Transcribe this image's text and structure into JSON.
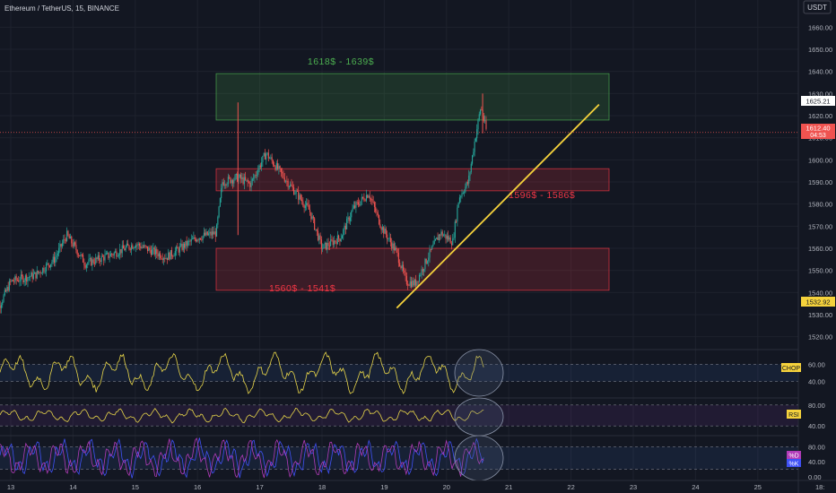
{
  "header": {
    "symbol": "Ethereum / TetherUS, 15, BINANCE",
    "currency": "USDT"
  },
  "zones": [
    {
      "label": "1618$ - 1639$",
      "low": 1618,
      "high": 1639,
      "color": "#4caf50"
    },
    {
      "label": "1596$ - 1586$",
      "low": 1586,
      "high": 1596,
      "color": "#f23645"
    },
    {
      "label": "1560$ - 1541$",
      "low": 1541,
      "high": 1560,
      "color": "#f23645"
    }
  ],
  "price_badges": {
    "badge_high": "1625.21",
    "badge_last_price": "1612.40",
    "badge_timer": "04:53",
    "badge_low": "1532.92"
  },
  "indicators": {
    "chop": {
      "label": "CHOP",
      "ticks": [
        "60.00",
        "40.00"
      ]
    },
    "rsi": {
      "label": "RSI",
      "ticks": [
        "80.00",
        "40.00"
      ]
    },
    "stoch": {
      "label_k": "%K",
      "label_d": "%D",
      "ticks": [
        "80.00",
        "40.00",
        "0.00"
      ]
    }
  },
  "colors": {
    "background": "#131722",
    "up": "#26a69a",
    "down": "#ef5350",
    "trendline": "#f5d23c",
    "chop": "#e8d64a",
    "rsi": "#e8d64a",
    "stoch_k": "#3f51f5",
    "stoch_d": "#b13bb8"
  },
  "chart_data": {
    "type": "candlestick",
    "ylim": [
      1515,
      1665
    ],
    "y_ticks": [
      1520,
      1530,
      1540,
      1550,
      1560,
      1570,
      1580,
      1590,
      1600,
      1610,
      1620,
      1630,
      1640,
      1650,
      1660
    ],
    "x_ticks": [
      "13",
      "14",
      "15",
      "16",
      "17",
      "18",
      "19",
      "20",
      "21",
      "22",
      "23",
      "24",
      "25",
      "18:"
    ],
    "trendline": {
      "from": {
        "day": 19.2,
        "price": 1533
      },
      "to": {
        "day": 22.45,
        "price": 1625
      }
    },
    "price_path": [
      {
        "day": 12.7,
        "price": 1527
      },
      {
        "day": 13.0,
        "price": 1545
      },
      {
        "day": 13.4,
        "price": 1548
      },
      {
        "day": 13.7,
        "price": 1555
      },
      {
        "day": 13.9,
        "price": 1566
      },
      {
        "day": 14.2,
        "price": 1553
      },
      {
        "day": 14.6,
        "price": 1557
      },
      {
        "day": 15.0,
        "price": 1562
      },
      {
        "day": 15.5,
        "price": 1556
      },
      {
        "day": 16.0,
        "price": 1565
      },
      {
        "day": 16.3,
        "price": 1567
      },
      {
        "day": 16.4,
        "price": 1590
      },
      {
        "day": 16.65,
        "price": 1592
      },
      {
        "day": 16.85,
        "price": 1589
      },
      {
        "day": 17.1,
        "price": 1603
      },
      {
        "day": 17.5,
        "price": 1588
      },
      {
        "day": 17.8,
        "price": 1577
      },
      {
        "day": 18.0,
        "price": 1560
      },
      {
        "day": 18.3,
        "price": 1565
      },
      {
        "day": 18.5,
        "price": 1578
      },
      {
        "day": 18.75,
        "price": 1585
      },
      {
        "day": 18.95,
        "price": 1570
      },
      {
        "day": 19.2,
        "price": 1558
      },
      {
        "day": 19.35,
        "price": 1545
      },
      {
        "day": 19.5,
        "price": 1544
      },
      {
        "day": 19.7,
        "price": 1556
      },
      {
        "day": 19.9,
        "price": 1567
      },
      {
        "day": 20.1,
        "price": 1563
      },
      {
        "day": 20.2,
        "price": 1583
      },
      {
        "day": 20.35,
        "price": 1590
      },
      {
        "day": 20.45,
        "price": 1608
      },
      {
        "day": 20.55,
        "price": 1624
      },
      {
        "day": 20.65,
        "price": 1612
      }
    ],
    "wicks": [
      {
        "day": 16.65,
        "high": 1626,
        "low": 1566
      },
      {
        "day": 20.58,
        "high": 1630,
        "low": 1612
      }
    ]
  }
}
